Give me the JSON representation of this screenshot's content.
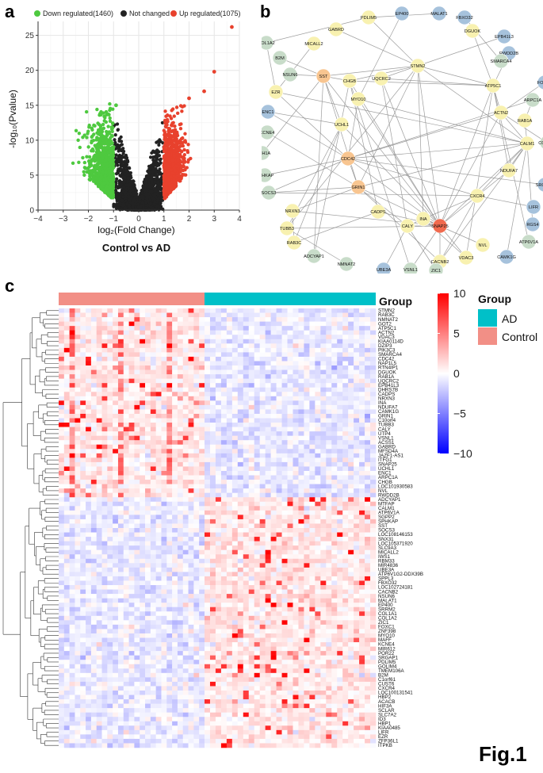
{
  "panels": {
    "a": "a",
    "b": "b",
    "c": "c"
  },
  "figure_label": "Fig.1",
  "colors": {
    "down": "#4ec93f",
    "up": "#e8412d",
    "nc": "#222222",
    "high": "#ff0000",
    "low": "#0000ff",
    "mid": "#ffffff",
    "ad": "#00c0c8",
    "control": "#f28f86"
  },
  "chart_data": [
    {
      "type": "scatter",
      "id": "volcano",
      "title": "Control vs AD",
      "xlabel": "log₂(Fold Change)",
      "ylabel": "-log₁₀(Pvalue)",
      "xlim": [
        -4,
        4
      ],
      "ylim": [
        0,
        27
      ],
      "xticks": [
        "−4",
        "−3",
        "−2",
        "−1",
        "0",
        "1",
        "2",
        "3",
        "4"
      ],
      "yticks": [
        "0",
        "5",
        "10",
        "15",
        "20",
        "25"
      ],
      "grid": true,
      "legend": {
        "placement": "top",
        "down": "Down regulated(1460)",
        "nc": "Not changed",
        "up": "Up regulated(1075)"
      },
      "outliers": [
        {
          "x": 3.7,
          "y": 26.2
        },
        {
          "x": 3.0,
          "y": 19.8
        },
        {
          "x": 2.6,
          "y": 17.0
        },
        {
          "x": 2.0,
          "y": 16.0
        },
        {
          "x": -0.9,
          "y": 15.0
        }
      ]
    },
    {
      "type": "network",
      "id": "ppi",
      "nodes": [
        "EP400",
        "MALAT1",
        "FBXO32",
        "PDLIM5",
        "GABRD",
        "DGUOK",
        "MICALL2",
        "EPB41L3",
        "COL1A2",
        "RWDD2B",
        "SMARCA4",
        "B2M",
        "STMN2",
        "UQCRC2",
        "CHGB",
        "SST",
        "NSUN6",
        "ATP5C1",
        "FOXC1",
        "EZR",
        "MYO10",
        "ARPC1A",
        "ACTN2",
        "RAB1A",
        "ENC1",
        "KCNE4",
        "UCHL1",
        "CALM1",
        "COL1A1",
        "CIRH1A",
        "CDC42",
        "NDUFA7",
        "SRGAP1",
        "SPHKAP",
        "GRIN1",
        "LIFR",
        "SOCS3",
        "CXCR4",
        "RGS4",
        "NRXN3",
        "ATP6V1A",
        "TUBB3",
        "CADPS",
        "INA",
        "CAMK1G",
        "RAB3C",
        "CALY",
        "SNAP25",
        "NVL",
        "ADCYAP1",
        "VDAC3",
        "CACNB2",
        "NMNAT2",
        "UBE3A",
        "VSNL1",
        "ZIC1"
      ]
    },
    {
      "type": "heatmap",
      "id": "heatmap",
      "group_title": "Group",
      "groups": [
        {
          "name": "Control",
          "count": 27
        },
        {
          "name": "AD",
          "count": 31
        }
      ],
      "legend_ticks": [
        "10",
        "5",
        "0",
        "−5",
        "−10"
      ],
      "legend_group_title": "Group",
      "legend_groups": [
        "AD",
        "Control"
      ],
      "up_in_control_count": 43,
      "rows": [
        "STMN2",
        "RAB3C",
        "NMNAT2",
        "GOT2",
        "ATP5C1",
        "ACTN2",
        "VDAC3",
        "KIAA0114D",
        "DZIP3",
        "PIK3C3",
        "SMARCA4",
        "CDC42",
        "NAP1L5",
        "RTN4IP1",
        "DGUOK",
        "RAB1A",
        "UQCRC2",
        "EPB41L3",
        "DHRS7B",
        "CADPS",
        "NRXN3",
        "INA",
        "NDUFA7",
        "CAMK1G",
        "GRIN1",
        "C10orf4",
        "TUBB3",
        "CALY",
        "UTP4",
        "VSNL1",
        "ACSS1",
        "GABRD",
        "MFSD4A",
        "JAZF1-AS1",
        "ITFG1",
        "SNAP25",
        "UCHL1",
        "ENC1",
        "ARPC1A",
        "CHGB",
        "LOC101930583",
        "NVL",
        "RWDD2B",
        "ADCYAP1",
        "MTFAP",
        "CALM1",
        "ATP6V1A",
        "SGPP2",
        "SPHKAP",
        "SST",
        "SOCS3",
        "LOC108146153",
        "SNX31",
        "LOC105371920",
        "SLC9A3",
        "MICALL2",
        "IWS1",
        "RBM33",
        "MIR4836",
        "UBE3A",
        "ATP6V1G2-DDX39B",
        "SPPL3",
        "FBXO32",
        "LOC102724181",
        "CACNB2",
        "NSUN6",
        "MALAT1",
        "EP400",
        "SRRM2",
        "COL1A1",
        "COL1A2",
        "ZIC1",
        "FOXC1",
        "ZNF398",
        "MYO10",
        "MAFF",
        "KCNE4",
        "MIR612",
        "POR22",
        "SRGAP1",
        "PDLIM5",
        "GOLIM4",
        "TMEM106A",
        "B2M",
        "C1orf61",
        "CUST6",
        "CXCR4",
        "LOC100131541",
        "HBP2",
        "ACACB",
        "HIF3A",
        "SCLAR",
        "SLC7A2",
        "ID3",
        "HBP1",
        "KIAA0485",
        "LIFR",
        "EZR",
        "ZFP36L1",
        "ITPKB"
      ]
    }
  ]
}
